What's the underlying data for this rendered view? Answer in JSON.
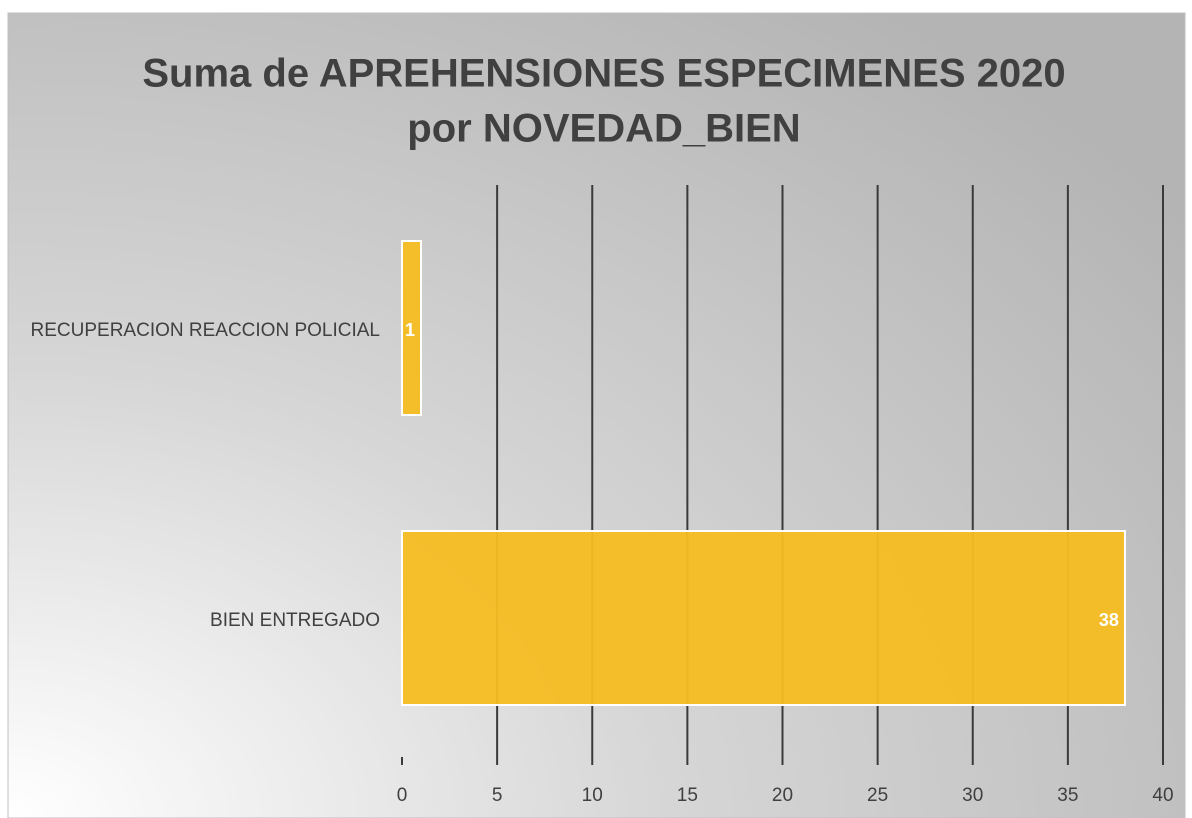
{
  "chart_data": {
    "type": "hbar",
    "title": [
      "Suma de APREHENSIONES ESPECIMENES 2020",
      "por NOVEDAD_BIEN"
    ],
    "categories": [
      "RECUPERACION REACCION POLICIAL",
      "BIEN ENTREGADO"
    ],
    "values": [
      1,
      38
    ],
    "color": "#f5bd22",
    "xlim": [
      0,
      40
    ],
    "xticks": [
      0,
      5,
      10,
      15,
      20,
      25,
      30,
      35,
      40
    ],
    "grid": true
  }
}
